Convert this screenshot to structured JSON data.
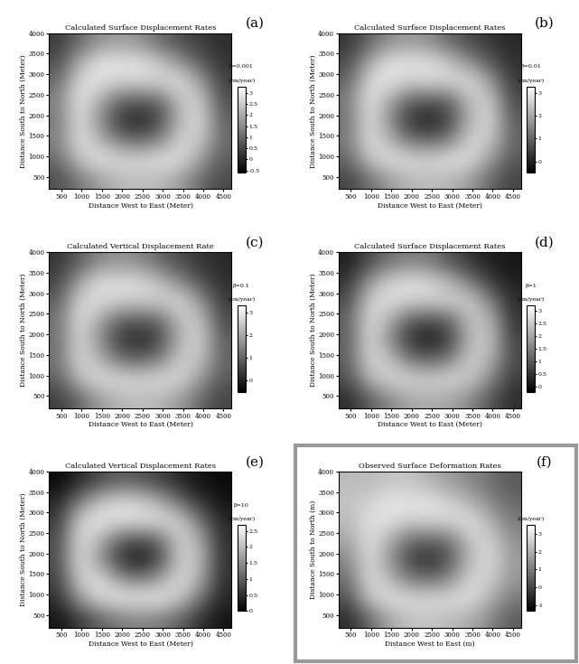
{
  "chart_data": [
    {
      "type": "heatmap",
      "panel": "(a)",
      "title": "Calculated Surface Displacement Rates",
      "x_label": "Distance West to East (Meter)",
      "y_label": "Distance South to North (Meter)",
      "colorbar_label": "β=0.001",
      "unit": "(cm/year)",
      "xlim": [
        200,
        4700
      ],
      "ylim": [
        200,
        4000
      ],
      "xticks": [
        500,
        1000,
        1500,
        2000,
        2500,
        3000,
        3500,
        4000,
        4500
      ],
      "yticks": [
        500,
        1000,
        1500,
        2000,
        2500,
        3000,
        3500,
        4000
      ],
      "clim": [
        -0.6,
        3.3
      ],
      "cticks": [
        -0.5,
        0,
        0.5,
        1,
        1.5,
        2,
        2.5,
        3
      ],
      "cells": [
        [
          0.6,
          1.2,
          1.8,
          2.2,
          2.3,
          2.2,
          1.8,
          1.0,
          0.5
        ],
        [
          1.0,
          2.4,
          2.9,
          2.8,
          2.7,
          2.9,
          2.8,
          1.8,
          0.8
        ],
        [
          1.4,
          2.9,
          2.2,
          1.2,
          1.0,
          1.4,
          2.7,
          2.5,
          1.0
        ],
        [
          1.2,
          2.9,
          1.6,
          0.3,
          -0.2,
          0.6,
          2.2,
          2.8,
          0.9
        ],
        [
          1.4,
          3.0,
          2.0,
          0.9,
          0.8,
          0.9,
          2.4,
          2.6,
          0.6
        ],
        [
          1.0,
          2.8,
          2.9,
          2.6,
          2.7,
          2.7,
          2.9,
          1.8,
          0.4
        ],
        [
          0.6,
          2.0,
          2.9,
          2.9,
          2.9,
          2.4,
          1.6,
          0.8,
          0.2
        ],
        [
          0.3,
          1.0,
          1.6,
          1.8,
          1.6,
          1.0,
          0.6,
          0.3,
          0.1
        ]
      ]
    },
    {
      "type": "heatmap",
      "panel": "(b)",
      "title": "Calculated Surface Displacement Rates",
      "x_label": "Distance West to East (Meter)",
      "y_label": "Distance South to North (Meter)",
      "colorbar_label": "β=0.01",
      "unit": "(cm/year)",
      "xlim": [
        200,
        4700
      ],
      "ylim": [
        200,
        4000
      ],
      "xticks": [
        500,
        1000,
        1500,
        2000,
        2500,
        3000,
        3500,
        4000,
        4500
      ],
      "yticks": [
        500,
        1000,
        1500,
        2000,
        2500,
        3000,
        3500,
        4000
      ],
      "clim": [
        -0.5,
        3.3
      ],
      "cticks": [
        0,
        1,
        2,
        3
      ],
      "cells": [
        [
          0.5,
          1.1,
          1.8,
          2.2,
          2.3,
          2.2,
          1.8,
          1.0,
          0.5
        ],
        [
          1.0,
          2.4,
          2.9,
          2.8,
          2.7,
          2.9,
          2.8,
          1.8,
          0.8
        ],
        [
          1.3,
          2.9,
          2.2,
          1.2,
          1.0,
          1.4,
          2.7,
          2.5,
          1.0
        ],
        [
          1.2,
          2.9,
          1.6,
          0.3,
          -0.1,
          0.6,
          2.2,
          2.8,
          0.9
        ],
        [
          1.3,
          3.0,
          2.0,
          0.9,
          0.8,
          0.9,
          2.4,
          2.6,
          0.6
        ],
        [
          1.0,
          2.8,
          2.9,
          2.6,
          2.7,
          2.7,
          2.9,
          1.8,
          0.4
        ],
        [
          0.6,
          2.0,
          2.9,
          2.9,
          2.9,
          2.4,
          1.6,
          0.8,
          0.2
        ],
        [
          0.3,
          1.0,
          1.6,
          1.8,
          1.6,
          1.0,
          0.6,
          0.3,
          0.1
        ]
      ]
    },
    {
      "type": "heatmap",
      "panel": "(c)",
      "title": "Calculated Vertical Displacement Rate",
      "x_label": "Distance West to East (Meter)",
      "y_label": "Distance South to North (Meter)",
      "colorbar_label": "β=0.1",
      "unit": "(cm/year)",
      "xlim": [
        200,
        4700
      ],
      "ylim": [
        200,
        4000
      ],
      "xticks": [
        500,
        1000,
        1500,
        2000,
        2500,
        3000,
        3500,
        4000,
        4500
      ],
      "yticks": [
        500,
        1000,
        1500,
        2000,
        2500,
        3000,
        3500,
        4000
      ],
      "clim": [
        -0.5,
        3.3
      ],
      "cticks": [
        0,
        1,
        2,
        3
      ],
      "cells": [
        [
          0.4,
          1.0,
          1.8,
          2.2,
          2.3,
          2.2,
          1.8,
          1.0,
          0.5
        ],
        [
          0.9,
          2.3,
          2.8,
          2.8,
          2.7,
          2.8,
          2.7,
          1.8,
          0.8
        ],
        [
          1.2,
          2.8,
          2.2,
          1.2,
          1.0,
          1.4,
          2.6,
          2.4,
          1.0
        ],
        [
          1.1,
          2.8,
          1.6,
          0.4,
          0.0,
          0.6,
          2.2,
          2.7,
          0.9
        ],
        [
          1.2,
          2.9,
          2.0,
          0.9,
          0.8,
          1.0,
          2.4,
          2.5,
          0.6
        ],
        [
          0.9,
          2.7,
          2.8,
          2.6,
          2.6,
          2.6,
          2.8,
          1.7,
          0.4
        ],
        [
          0.5,
          1.9,
          2.8,
          2.8,
          2.8,
          2.3,
          1.5,
          0.7,
          0.2
        ],
        [
          0.3,
          0.9,
          1.5,
          1.7,
          1.5,
          1.0,
          0.6,
          0.3,
          0.1
        ]
      ]
    },
    {
      "type": "heatmap",
      "panel": "(d)",
      "title": "Calculated Surface Displacement Rates",
      "x_label": "Distance West to East (Meter)",
      "y_label": "Distance South to North (Meter)",
      "colorbar_label": "β=1",
      "unit": "(cm/year)",
      "xlim": [
        200,
        4700
      ],
      "ylim": [
        200,
        4000
      ],
      "xticks": [
        500,
        1000,
        1500,
        2000,
        2500,
        3000,
        3500,
        4000,
        4500
      ],
      "yticks": [
        500,
        1000,
        1500,
        2000,
        2500,
        3000,
        3500,
        4000
      ],
      "clim": [
        -0.2,
        3.2
      ],
      "cticks": [
        0,
        0.5,
        1,
        1.5,
        2,
        2.5,
        3
      ],
      "cells": [
        [
          0.4,
          1.0,
          1.6,
          2.0,
          2.1,
          2.0,
          1.6,
          0.9,
          0.4
        ],
        [
          0.8,
          2.2,
          2.7,
          2.7,
          2.6,
          2.7,
          2.5,
          1.6,
          0.6
        ],
        [
          1.1,
          2.7,
          2.4,
          1.4,
          1.1,
          1.5,
          2.6,
          2.2,
          0.8
        ],
        [
          1.0,
          2.8,
          1.7,
          0.5,
          0.1,
          0.7,
          2.3,
          2.5,
          0.7
        ],
        [
          1.1,
          2.8,
          2.1,
          1.0,
          0.8,
          1.1,
          2.4,
          2.3,
          0.5
        ],
        [
          0.8,
          2.6,
          2.8,
          2.6,
          2.6,
          2.6,
          2.6,
          1.5,
          0.4
        ],
        [
          0.5,
          1.8,
          2.6,
          2.8,
          2.7,
          2.2,
          1.4,
          0.6,
          0.2
        ],
        [
          0.2,
          0.8,
          1.3,
          1.5,
          1.4,
          0.9,
          0.5,
          0.2,
          0.1
        ]
      ]
    },
    {
      "type": "heatmap",
      "panel": "(e)",
      "title": "Calculated Vertical Displacement Rates",
      "x_label": "Distance West to East (Meter)",
      "y_label": "Distance South to North (Meter)",
      "colorbar_label": "β=10",
      "unit": "(cm/year)",
      "xlim": [
        200,
        4700
      ],
      "ylim": [
        200,
        4000
      ],
      "xticks": [
        500,
        1000,
        1500,
        2000,
        2500,
        3000,
        3500,
        4000,
        4500
      ],
      "yticks": [
        500,
        1000,
        1500,
        2000,
        2500,
        3000,
        3500,
        4000
      ],
      "clim": [
        0,
        2.7
      ],
      "cticks": [
        0,
        0.5,
        1,
        1.5,
        2,
        2.5
      ],
      "cells": [
        [
          0.2,
          0.6,
          1.0,
          1.3,
          1.4,
          1.3,
          1.0,
          0.5,
          0.2
        ],
        [
          0.5,
          1.6,
          2.3,
          2.5,
          2.5,
          2.5,
          2.1,
          1.2,
          0.4
        ],
        [
          0.7,
          2.2,
          2.4,
          1.6,
          1.3,
          1.7,
          2.4,
          1.8,
          0.5
        ],
        [
          0.8,
          2.4,
          1.6,
          0.6,
          0.2,
          0.8,
          2.2,
          2.0,
          0.5
        ],
        [
          0.8,
          2.4,
          1.9,
          1.0,
          0.8,
          1.1,
          2.3,
          1.8,
          0.5
        ],
        [
          0.6,
          2.2,
          2.5,
          2.4,
          2.4,
          2.4,
          2.2,
          1.2,
          0.4
        ],
        [
          0.4,
          1.3,
          2.0,
          2.3,
          2.2,
          1.8,
          1.1,
          0.5,
          0.2
        ],
        [
          0.1,
          0.4,
          0.8,
          1.0,
          0.9,
          0.7,
          0.4,
          0.2,
          0.1
        ]
      ]
    },
    {
      "type": "heatmap",
      "panel": "(f)",
      "title": "Observed Surface Deformation Rates",
      "x_label": "Distance West to East (m)",
      "y_label": "Distance South to North (m)",
      "unit": "(cm/year)",
      "xlim": [
        200,
        4700
      ],
      "ylim": [
        200,
        4000
      ],
      "xticks": [
        500,
        1000,
        1500,
        2000,
        2500,
        3000,
        3500,
        4000,
        4500
      ],
      "yticks": [
        500,
        1000,
        1500,
        2000,
        2500,
        3000,
        3500,
        4000
      ],
      "clim": [
        -1.3,
        3.5
      ],
      "cticks": [
        -1,
        0,
        1,
        2,
        3
      ],
      "cells": [
        [
          -0.5,
          0.6,
          1.8,
          2.3,
          2.4,
          2.2,
          1.9,
          1.2,
          0.4
        ],
        [
          0.2,
          2.4,
          3.0,
          2.9,
          2.8,
          2.9,
          2.9,
          2.0,
          1.0
        ],
        [
          0.8,
          2.9,
          2.2,
          1.0,
          0.8,
          1.3,
          2.8,
          2.6,
          1.5
        ],
        [
          1.2,
          3.0,
          1.5,
          0.0,
          -0.6,
          0.4,
          2.2,
          2.9,
          1.6
        ],
        [
          1.8,
          3.0,
          2.0,
          0.7,
          0.6,
          0.8,
          2.5,
          2.7,
          1.4
        ],
        [
          2.2,
          2.9,
          3.0,
          2.6,
          2.8,
          2.8,
          3.0,
          2.0,
          1.0
        ],
        [
          2.4,
          2.6,
          3.0,
          3.0,
          3.0,
          2.6,
          2.0,
          1.2,
          0.6
        ],
        [
          2.2,
          2.2,
          2.4,
          2.4,
          2.0,
          1.6,
          1.2,
          0.8,
          0.4
        ]
      ]
    }
  ]
}
